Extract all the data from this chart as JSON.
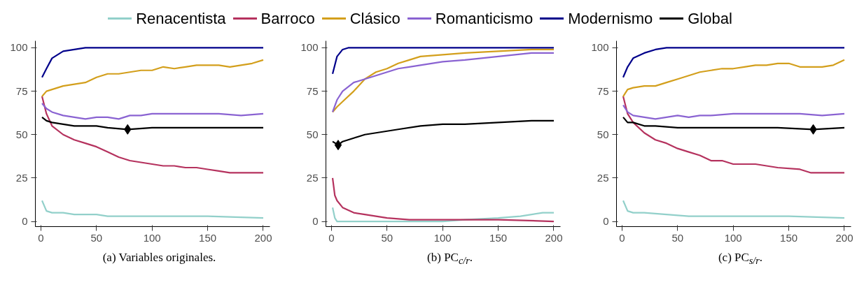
{
  "chart_data": [
    {
      "type": "line",
      "legend": "top",
      "annotations": [
        "(a) Variables originales."
      ],
      "xlim": [
        -5,
        206
      ],
      "ylim": [
        -3,
        104
      ],
      "xticks": [
        0,
        50,
        100,
        150,
        200
      ],
      "yticks": [
        0,
        25,
        50,
        75,
        100
      ],
      "grid": false,
      "series": [
        {
          "name": "Renacentista",
          "color": "#92d0ca",
          "x": [
            1,
            5,
            10,
            20,
            30,
            40,
            50,
            60,
            80,
            100,
            150,
            200
          ],
          "values": [
            12,
            6,
            5,
            5,
            4,
            4,
            4,
            3,
            3,
            3,
            3,
            2
          ]
        },
        {
          "name": "Barroco",
          "color": "#b5325e",
          "x": [
            1,
            5,
            10,
            20,
            30,
            40,
            50,
            60,
            70,
            80,
            90,
            100,
            110,
            120,
            130,
            140,
            150,
            160,
            170,
            180,
            190,
            200
          ],
          "values": [
            72,
            62,
            55,
            50,
            47,
            45,
            43,
            40,
            37,
            35,
            34,
            33,
            32,
            32,
            31,
            31,
            30,
            29,
            28,
            28,
            28,
            28
          ]
        },
        {
          "name": "Clásico",
          "color": "#d39f1c",
          "x": [
            1,
            5,
            10,
            20,
            30,
            40,
            50,
            60,
            70,
            80,
            90,
            100,
            110,
            120,
            130,
            140,
            150,
            160,
            170,
            180,
            190,
            200
          ],
          "values": [
            72,
            75,
            76,
            78,
            79,
            80,
            83,
            85,
            85,
            86,
            87,
            87,
            89,
            88,
            89,
            90,
            90,
            90,
            89,
            90,
            91,
            93
          ]
        },
        {
          "name": "Romanticismo",
          "color": "#8a63d2",
          "x": [
            1,
            5,
            10,
            20,
            30,
            40,
            50,
            60,
            70,
            80,
            90,
            100,
            120,
            140,
            160,
            180,
            200
          ],
          "values": [
            68,
            65,
            63,
            61,
            60,
            59,
            60,
            60,
            59,
            61,
            61,
            62,
            62,
            62,
            62,
            61,
            62
          ]
        },
        {
          "name": "Modernismo",
          "color": "#00008b",
          "x": [
            1,
            5,
            10,
            15,
            20,
            30,
            40,
            200
          ],
          "values": [
            83,
            88,
            94,
            96,
            98,
            99,
            100,
            100
          ]
        },
        {
          "name": "Global",
          "color": "#000000",
          "x": [
            1,
            5,
            10,
            20,
            30,
            40,
            50,
            60,
            78,
            100,
            120,
            140,
            160,
            180,
            200
          ],
          "values": [
            60,
            58,
            57,
            56,
            55,
            55,
            55,
            54,
            53,
            54,
            54,
            54,
            54,
            54,
            54
          ]
        },
        {
          "type": "scatter",
          "marker": "diamond",
          "color": "#000000",
          "x": [
            78
          ],
          "values": [
            53
          ]
        }
      ]
    },
    {
      "type": "line",
      "annotations": [
        "(b) PC$_{c/r}$."
      ],
      "xlim": [
        -5,
        206
      ],
      "ylim": [
        -3,
        104
      ],
      "xticks": [
        0,
        50,
        100,
        150,
        200
      ],
      "yticks": [
        0,
        25,
        50,
        75,
        100
      ],
      "grid": false,
      "series": [
        {
          "color": "#92d0ca",
          "x": [
            1,
            3,
            5,
            50,
            100,
            120,
            150,
            170,
            180,
            190,
            200
          ],
          "values": [
            8,
            2,
            0,
            0,
            0,
            1,
            2,
            3,
            4,
            5,
            5
          ]
        },
        {
          "color": "#b5325e",
          "x": [
            1,
            3,
            5,
            10,
            20,
            30,
            40,
            50,
            70,
            100,
            150,
            200
          ],
          "values": [
            25,
            15,
            12,
            8,
            5,
            4,
            3,
            2,
            1,
            1,
            1,
            0
          ]
        },
        {
          "color": "#d39f1c",
          "x": [
            1,
            5,
            10,
            20,
            30,
            40,
            50,
            60,
            70,
            80,
            100,
            120,
            150,
            180,
            200
          ],
          "values": [
            63,
            66,
            69,
            75,
            82,
            86,
            88,
            91,
            93,
            95,
            96,
            97,
            98,
            99,
            99
          ]
        },
        {
          "color": "#8a63d2",
          "x": [
            1,
            5,
            10,
            20,
            30,
            40,
            50,
            60,
            70,
            80,
            100,
            120,
            150,
            180,
            200
          ],
          "values": [
            63,
            70,
            75,
            80,
            82,
            84,
            86,
            88,
            89,
            90,
            92,
            93,
            95,
            97,
            97
          ]
        },
        {
          "color": "#00008b",
          "x": [
            1,
            5,
            10,
            15,
            200
          ],
          "values": [
            85,
            95,
            99,
            100,
            100
          ]
        },
        {
          "color": "#000000",
          "x": [
            1,
            6,
            10,
            20,
            30,
            40,
            50,
            60,
            80,
            100,
            120,
            150,
            180,
            200
          ],
          "values": [
            46,
            44,
            46,
            48,
            50,
            51,
            52,
            53,
            55,
            56,
            56,
            57,
            58,
            58
          ]
        },
        {
          "type": "scatter",
          "marker": "diamond",
          "color": "#000000",
          "x": [
            6
          ],
          "values": [
            44
          ]
        }
      ]
    },
    {
      "type": "line",
      "annotations": [
        "(c) PC$_{s/r}$."
      ],
      "xlim": [
        -5,
        206
      ],
      "ylim": [
        -3,
        104
      ],
      "xticks": [
        0,
        50,
        100,
        150,
        200
      ],
      "yticks": [
        0,
        25,
        50,
        75,
        100
      ],
      "grid": false,
      "series": [
        {
          "color": "#92d0ca",
          "x": [
            1,
            5,
            10,
            20,
            40,
            60,
            100,
            150,
            200
          ],
          "values": [
            12,
            6,
            5,
            5,
            4,
            3,
            3,
            3,
            2
          ]
        },
        {
          "color": "#b5325e",
          "x": [
            1,
            5,
            10,
            20,
            30,
            40,
            50,
            60,
            70,
            80,
            90,
            100,
            120,
            140,
            160,
            170,
            180,
            190,
            200
          ],
          "values": [
            72,
            62,
            57,
            51,
            47,
            45,
            42,
            40,
            38,
            35,
            35,
            33,
            33,
            31,
            30,
            28,
            28,
            28,
            28
          ]
        },
        {
          "color": "#d39f1c",
          "x": [
            1,
            5,
            10,
            20,
            30,
            40,
            50,
            60,
            70,
            80,
            90,
            100,
            110,
            120,
            130,
            140,
            150,
            160,
            170,
            180,
            190,
            200
          ],
          "values": [
            72,
            76,
            77,
            78,
            78,
            80,
            82,
            84,
            86,
            87,
            88,
            88,
            89,
            90,
            90,
            91,
            91,
            89,
            89,
            89,
            90,
            93
          ]
        },
        {
          "color": "#8a63d2",
          "x": [
            1,
            5,
            10,
            20,
            30,
            40,
            50,
            60,
            70,
            80,
            100,
            120,
            140,
            160,
            180,
            200
          ],
          "values": [
            67,
            63,
            61,
            60,
            59,
            60,
            61,
            60,
            61,
            61,
            62,
            62,
            62,
            62,
            61,
            62
          ]
        },
        {
          "color": "#00008b",
          "x": [
            1,
            5,
            10,
            20,
            30,
            40,
            200
          ],
          "values": [
            83,
            89,
            94,
            97,
            99,
            100,
            100
          ]
        },
        {
          "color": "#000000",
          "x": [
            1,
            5,
            10,
            20,
            30,
            50,
            80,
            100,
            120,
            140,
            172,
            200
          ],
          "values": [
            60,
            57,
            57,
            55,
            55,
            54,
            54,
            54,
            54,
            54,
            53,
            54
          ]
        },
        {
          "type": "scatter",
          "marker": "diamond",
          "color": "#000000",
          "x": [
            172
          ],
          "values": [
            53
          ]
        }
      ]
    }
  ]
}
